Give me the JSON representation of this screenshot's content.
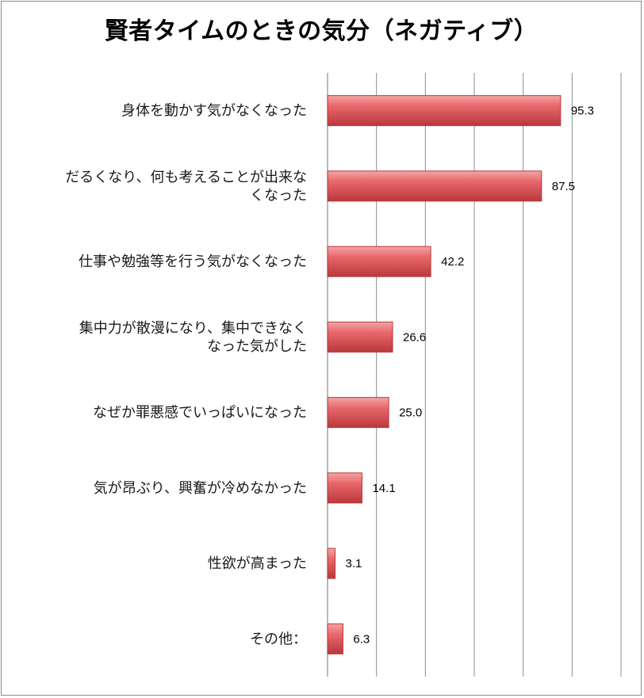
{
  "chart_data": {
    "type": "bar",
    "orientation": "horizontal",
    "title": "賢者タイムのときの気分（ネガティブ）",
    "categories": [
      [
        "身体を動かす気がなくなった"
      ],
      [
        "だるくなり、何も考えることが出来な",
        "くなった"
      ],
      [
        "仕事や勉強等を行う気がなくなった"
      ],
      [
        "集中力が散漫になり、集中できなく",
        "なった気がした"
      ],
      [
        "なぜか罪悪感でいっぱいになった"
      ],
      [
        "気が昂ぶり、興奮が冷めなかった"
      ],
      [
        "性欲が高まった"
      ],
      [
        "その他："
      ]
    ],
    "values": [
      95.3,
      87.5,
      42.2,
      26.6,
      25.0,
      14.1,
      3.1,
      6.3
    ],
    "value_labels": [
      "95.3",
      "87.5",
      "42.2",
      "26.6",
      "25.0",
      "14.1",
      "3.1",
      "6.3"
    ],
    "xlim": [
      0,
      120
    ],
    "x_gridline_step": 20,
    "grid": true,
    "legend": "none",
    "colors": {
      "bar_fill": "#e8676a",
      "bar_light": "#f4a5a6",
      "bar_dark": "#b9383c",
      "grid": "#8c8c8c"
    }
  }
}
